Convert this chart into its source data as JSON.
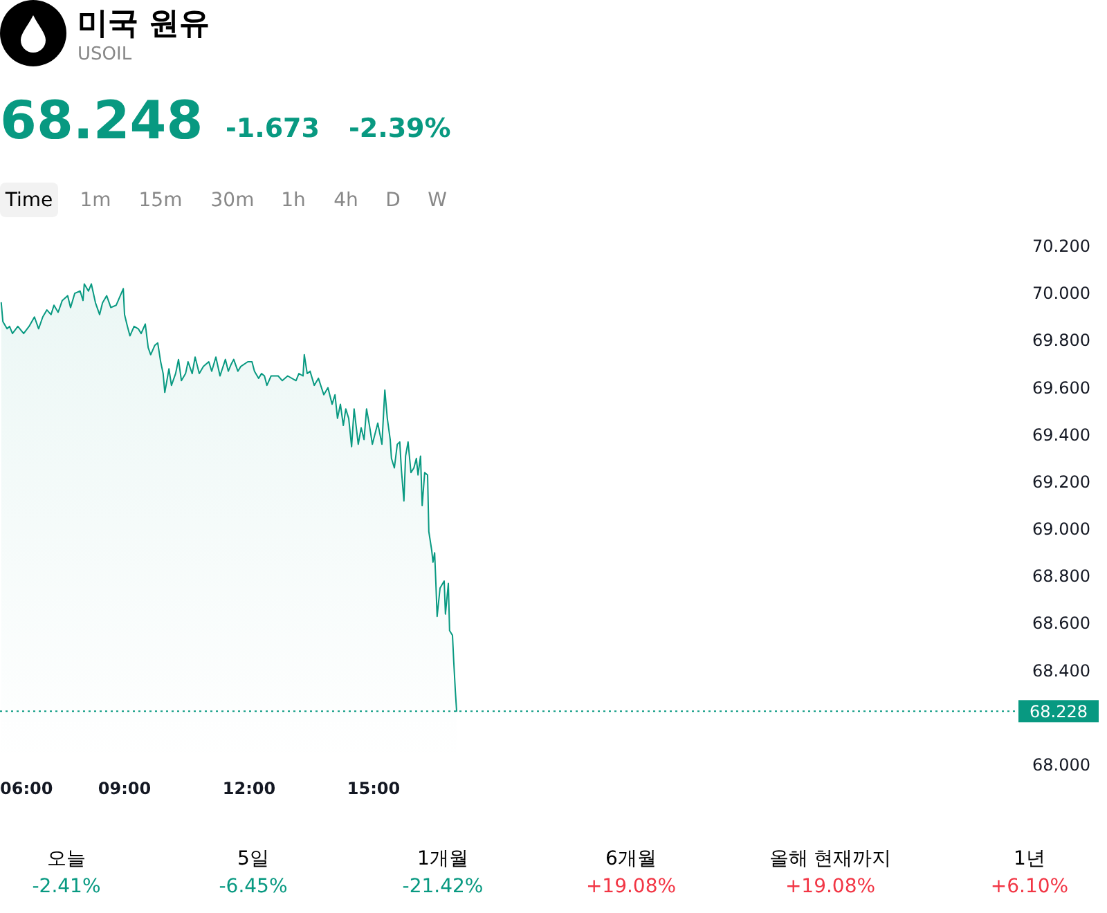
{
  "chart_data": {
    "type": "area",
    "title": "미국 원유",
    "subtitle": "USOIL",
    "annotations": [
      "68.248",
      "-1.673",
      "-2.39%",
      "Time",
      "1m",
      "15m",
      "30m",
      "1h",
      "4h",
      "D",
      "W",
      "오늘",
      "-2.41%",
      "5일",
      "-6.45%",
      "1개월",
      "-21.42%",
      "6개월",
      "+19.08%",
      "올해 현재까지",
      "+19.08%",
      "1년",
      "+6.10%"
    ],
    "x": [
      6.03,
      6.07,
      6.17,
      6.23,
      6.3,
      6.43,
      6.57,
      6.7,
      6.83,
      6.93,
      7.03,
      7.13,
      7.23,
      7.3,
      7.4,
      7.5,
      7.63,
      7.7,
      7.8,
      7.93,
      8.0,
      8.03,
      8.13,
      8.2,
      8.3,
      8.4,
      8.47,
      8.57,
      8.67,
      8.8,
      8.97,
      9.0,
      9.07,
      9.13,
      9.23,
      9.33,
      9.4,
      9.5,
      9.57,
      9.63,
      9.73,
      9.8,
      9.87,
      9.93,
      9.97,
      10.07,
      10.13,
      10.23,
      10.3,
      10.37,
      10.47,
      10.53,
      10.63,
      10.7,
      10.8,
      10.9,
      11.03,
      11.1,
      11.2,
      11.3,
      11.43,
      11.5,
      11.57,
      11.63,
      11.73,
      11.8,
      11.97,
      12.07,
      12.13,
      12.23,
      12.3,
      12.37,
      12.43,
      12.53,
      12.7,
      12.8,
      12.93,
      13.13,
      13.2,
      13.3,
      13.33,
      13.4,
      13.47,
      13.57,
      13.67,
      13.8,
      13.9,
      14.0,
      14.07,
      14.13,
      14.2,
      14.27,
      14.33,
      14.4,
      14.47,
      14.53,
      14.63,
      14.7,
      14.77,
      14.83,
      14.9,
      14.97,
      15.1,
      15.2,
      15.27,
      15.33,
      15.4,
      15.43,
      15.5,
      15.57,
      15.63,
      15.67,
      15.73,
      15.77,
      15.83,
      15.9,
      15.97,
      16.03,
      16.07,
      16.13,
      16.17,
      16.23,
      16.3,
      16.33,
      16.4,
      16.43,
      16.47,
      16.5,
      16.53,
      16.6,
      16.7,
      16.73,
      16.8,
      16.83,
      16.9,
      16.93,
      16.97,
      17.0
    ],
    "series": [
      {
        "color": "#089981",
        "values": [
          69.96,
          69.88,
          69.85,
          69.86,
          69.83,
          69.86,
          69.83,
          69.86,
          69.9,
          69.85,
          69.9,
          69.93,
          69.91,
          69.95,
          69.92,
          69.97,
          69.99,
          69.94,
          70.0,
          70.01,
          69.97,
          70.04,
          70.01,
          70.04,
          69.96,
          69.91,
          69.96,
          69.99,
          69.94,
          69.95,
          70.02,
          69.91,
          69.86,
          69.82,
          69.86,
          69.85,
          69.83,
          69.87,
          69.77,
          69.74,
          69.78,
          69.79,
          69.71,
          69.66,
          69.58,
          69.68,
          69.61,
          69.66,
          69.72,
          69.63,
          69.66,
          69.71,
          69.66,
          69.73,
          69.66,
          69.69,
          69.71,
          69.67,
          69.73,
          69.65,
          69.72,
          69.67,
          69.7,
          69.72,
          69.67,
          69.69,
          69.71,
          69.71,
          69.67,
          69.64,
          69.66,
          69.65,
          69.61,
          69.65,
          69.65,
          69.63,
          69.65,
          69.63,
          69.66,
          69.65,
          69.74,
          69.66,
          69.67,
          69.61,
          69.64,
          69.57,
          69.6,
          69.53,
          69.57,
          69.47,
          69.53,
          69.44,
          69.51,
          69.47,
          69.35,
          69.51,
          69.36,
          69.43,
          69.38,
          69.51,
          69.44,
          69.36,
          69.45,
          69.36,
          69.59,
          69.47,
          69.38,
          69.3,
          69.26,
          69.36,
          69.37,
          69.25,
          69.12,
          69.31,
          69.37,
          69.24,
          69.26,
          69.3,
          69.23,
          69.31,
          69.1,
          69.24,
          69.23,
          68.99,
          68.91,
          68.86,
          68.9,
          68.77,
          68.63,
          68.75,
          68.78,
          68.64,
          68.77,
          68.57,
          68.55,
          68.44,
          68.31,
          68.228
        ]
      }
    ],
    "xlim": [
      6,
      30.5
    ],
    "xticks": [
      {
        "value": 6,
        "label": "06:00"
      },
      {
        "value": 9,
        "label": "09:00"
      },
      {
        "value": 12,
        "label": "12:00"
      },
      {
        "value": 15,
        "label": "15:00"
      }
    ],
    "ylim": [
      68,
      70.2
    ],
    "yticks": [
      {
        "value": 68,
        "label": "68.000"
      },
      {
        "value": 68.4,
        "label": "68.400"
      },
      {
        "value": 68.6,
        "label": "68.600"
      },
      {
        "value": 68.8,
        "label": "68.800"
      },
      {
        "value": 69,
        "label": "69.000"
      },
      {
        "value": 69.2,
        "label": "69.200"
      },
      {
        "value": 69.4,
        "label": "69.400"
      },
      {
        "value": 69.6,
        "label": "69.600"
      },
      {
        "value": 69.8,
        "label": "69.800"
      },
      {
        "value": 70,
        "label": "70.000"
      },
      {
        "value": 70.2,
        "label": "70.200"
      }
    ],
    "ref_lines": [
      {
        "axis": "y",
        "value": 68.228,
        "label": "68.228",
        "color": "#089981",
        "line_style": "dotted"
      }
    ],
    "grid": false,
    "marker": "none",
    "line_style": "solid"
  }
}
